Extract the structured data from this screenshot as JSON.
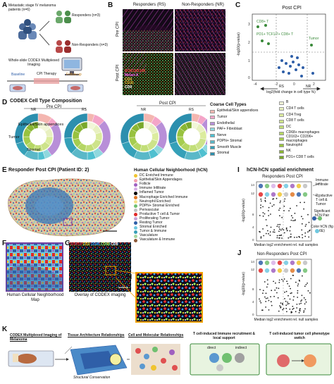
{
  "panel_letters": [
    "A",
    "B",
    "C",
    "D",
    "E",
    "F",
    "G",
    "H",
    "I",
    "J",
    "K"
  ],
  "panelA": {
    "cohort": "Metastatic stage IV melanoma patients (n=6)",
    "responders": "Responders (n=3)",
    "nonresponders": "Non-Responders (n=3)",
    "imaging": "Whole-slide CODEX Multiplexed Imaging",
    "timeline": {
      "baseline": "Baseline",
      "therapy": "CPI Therapy",
      "followup": "Follow-up"
    }
  },
  "panelB": {
    "col_rs": "Responders (RS)",
    "col_nr": "Non-Responders (NR)",
    "row_pre": "Pre CPI",
    "row_post": "Post CPI",
    "markers": [
      "SOX10/S100",
      "Melan-A",
      "CD3",
      "CD20",
      "CD8"
    ],
    "marker_colors": [
      "#e03030",
      "#e040e0",
      "#ffd24a",
      "#e8b02a",
      "#ffffff"
    ]
  },
  "panelC": {
    "title": "Post CPI",
    "ylabel": "-log10(p-value)",
    "xlabel": "log2(fold change in cell type %)",
    "x_ticks": [
      "-4",
      "-2",
      "0",
      "2"
    ],
    "y_ticks": [
      "0",
      "1",
      "2",
      "3"
    ],
    "left_label": "RS",
    "right_label": "NR"
  },
  "panelD": {
    "title": "CODEX Cell Type Composition",
    "group_pre": "Pre CPI",
    "group_post": "Post CPI",
    "donut_labels": [
      "NR",
      "RS",
      "NR",
      "RS"
    ],
    "coarse_title": "Coarse Cell Types",
    "coarse_types": [
      "Epithelial/Skin appendices",
      "Tumor",
      "Endothelial",
      "PAF+ Fibroblast",
      "Nerve",
      "PDPN+ Stromal",
      "Smooth Muscle",
      "Stromal"
    ],
    "coarse_colors": [
      "#f4b6b0",
      "#f4a5c8",
      "#b88fd8",
      "#8fd8de",
      "#4fc0d0",
      "#5ab8c8",
      "#35a0b8",
      "#2c8fae"
    ],
    "fine_types": [
      "B",
      "CD4 T cells",
      "CD4 Treg",
      "CD8 T cells",
      "DC",
      "CD68+ macrophages",
      "CD163+ CD206+ macrophages",
      "Neutrophil",
      "NK",
      "PD1+ CD8 T cells"
    ],
    "fine_colors": [
      "#f2f6d8",
      "#e8f0c0",
      "#dcec9e",
      "#cde38a",
      "#c2de78",
      "#b5d664",
      "#a6cd4f",
      "#98c23f",
      "#8ab634",
      "#7aa82c"
    ]
  },
  "panelE": {
    "title": "Responder Post CPI",
    "patient": "(Patient ID: 2)",
    "legend_title": "Human Cellular Neighborhood (hCN)",
    "neighborhoods": [
      {
        "name": "DC Enriched Immune",
        "color": "#f0c430"
      },
      {
        "name": "Epithelial/Skin Appendages",
        "color": "#f4a0b0"
      },
      {
        "name": "Follicle",
        "color": "#a060c0"
      },
      {
        "name": "Immune Infiltrate",
        "color": "#d8b0e8"
      },
      {
        "name": "Inflamed Tumor",
        "color": "#000000"
      },
      {
        "name": "Macrophage Enriched Immune",
        "color": "#e07828"
      },
      {
        "name": "Neutrophil Enriched",
        "color": "#f7e08a"
      },
      {
        "name": "PDPN+ Stromal Enriched",
        "color": "#70c070"
      },
      {
        "name": "Perivascular",
        "color": "#c0c0c0"
      },
      {
        "name": "Productive T cell & Tumor",
        "color": "#e02828"
      },
      {
        "name": "Proliferating Tumor",
        "color": "#c8a4d8"
      },
      {
        "name": "Resting Tumor",
        "color": "#2f5fa8"
      },
      {
        "name": "Stromal Enriched",
        "color": "#70c8e0"
      },
      {
        "name": "Tumor & Immune",
        "color": "#3aa0b8"
      },
      {
        "name": "Vasculature",
        "color": "#a8d8a0"
      },
      {
        "name": "Vasculature & Immune",
        "color": "#8e5a3a"
      }
    ]
  },
  "panelF": {
    "caption": "Human Cellular Neighborhood Map"
  },
  "panelG": {
    "markers": [
      "SOX10",
      "CD3",
      "CD45",
      "CD68",
      "CD8"
    ],
    "marker_colors": [
      "#ff3030",
      "#ffe020",
      "#40a0ff",
      "#a0ff60",
      "#ffffff"
    ],
    "caption": "Overlay of CODEX imaging"
  },
  "panelI": {
    "title": "hCN-hCN spatial enrichment",
    "subtitle": "Responders Post CPI",
    "ylabel": "-log10(p-value)",
    "xlabel": "Median log2 enrichment rel. null samples",
    "y_ticks": [
      "0",
      "2",
      "4",
      "6",
      "8",
      "10",
      "12",
      "14"
    ],
    "x_ticks": [
      "-2.0",
      "-1.5",
      "-1.0",
      "-0.5",
      "0.0",
      "0.5",
      "1.0",
      "1.5"
    ],
    "annot1": "Immune Infiltrate",
    "annot2": "Productive T cell & Tumor",
    "sig_label": "Significant hCN Pair",
    "color_label": "Color hCN (fig 6E)"
  },
  "panelJ": {
    "subtitle": "Non-Responders Post CPI",
    "ylabel": "-log10(p-value)",
    "xlabel": "Median log2 enrichment rel. null samples",
    "y_ticks": [
      "0",
      "2",
      "4",
      "6",
      "8",
      "10",
      "12",
      "14"
    ],
    "x_ticks": [
      "-2.0",
      "-1.5",
      "-1.0",
      "-0.5",
      "0.0",
      "0.5",
      "1.0",
      "1.5"
    ]
  },
  "panelK": {
    "step1": "CODEX Multiplexed Imaging of Melanoma",
    "step2": "Tissue Architecture Relationships",
    "step3": "Cell and Molecular Relationships",
    "step4": "T cell-induced Immune recruitment & local support",
    "step5": "T cell-induced tumor cell phenotype switch",
    "footer": "Structural Conservation",
    "direct": "direct",
    "indirect": "indirect"
  }
}
